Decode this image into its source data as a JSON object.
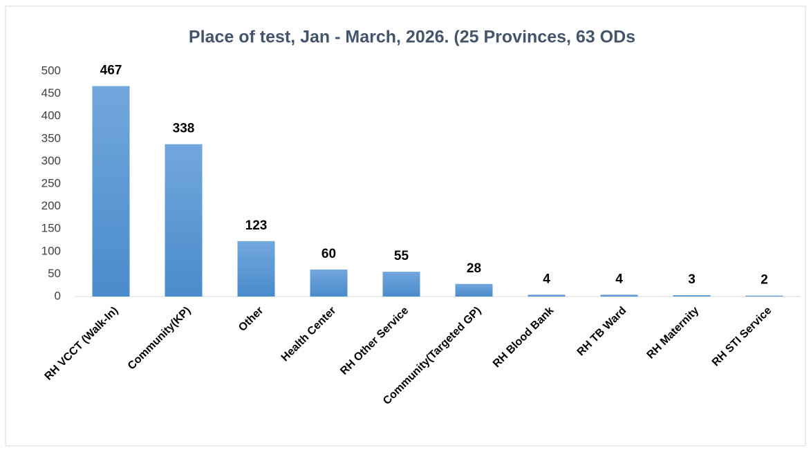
{
  "chart_data": {
    "type": "bar",
    "title": "Place of test, Jan - March, 2026. (25 Provinces, 63 ODs",
    "categories": [
      "RH VCCT (Walk-In)",
      "Community(KP)",
      "Other",
      "Health Center",
      "RH Other Service",
      "Community(Targeted GP)",
      "RH Blood Bank",
      "RH TB Ward",
      "RH Maternity",
      "RH STI Service"
    ],
    "values": [
      467,
      338,
      123,
      60,
      55,
      28,
      4,
      4,
      3,
      2
    ],
    "color": "#5b9bd5",
    "ylim": [
      0,
      500
    ],
    "yticks": [
      0,
      50,
      100,
      150,
      200,
      250,
      300,
      350,
      400,
      450,
      500
    ],
    "grid": false
  }
}
